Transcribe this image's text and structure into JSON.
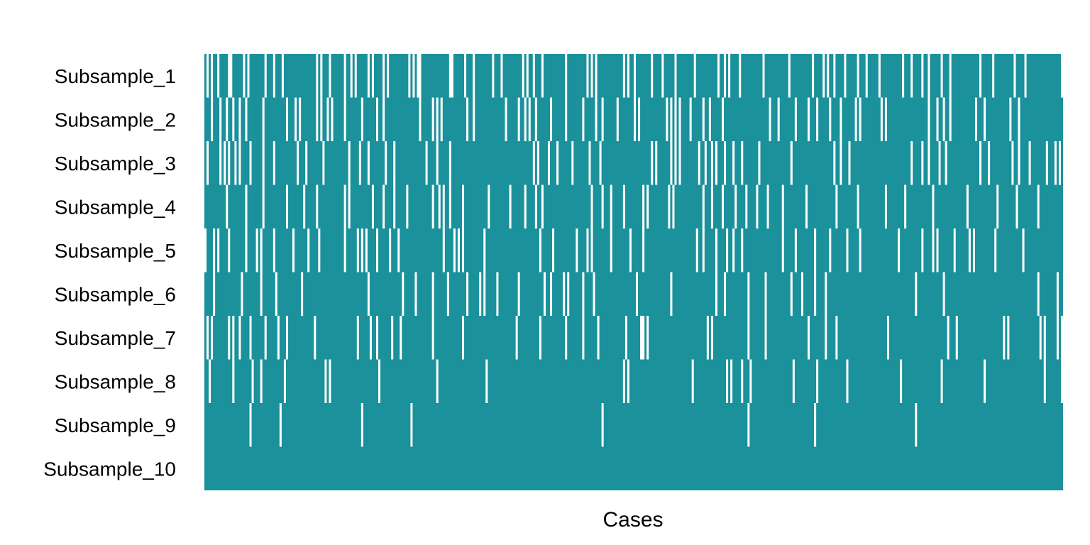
{
  "chart_data": {
    "type": "heatmap",
    "title": "",
    "xlabel": "Cases",
    "ylabel": "",
    "rows": [
      "Subsample_1",
      "Subsample_2",
      "Subsample_3",
      "Subsample_4",
      "Subsample_5",
      "Subsample_6",
      "Subsample_7",
      "Subsample_8",
      "Subsample_9",
      "Subsample_10"
    ],
    "n_cases": 400,
    "values_encoding": "each row is a binary membership string across cases: 1 = case included in subsample (filled cell), 0 = case not included (white cell)",
    "matrix": [
      "1010110111100111110101111111011101110111111111111111010111011111101101011111010111101011111111101010011111111111110011111011101111111101110111111111010110111011111111110111111111010101111111111110101101111111011110111110111111110111111111101101011110111111111101111111111101111111111011110101101111011111011101111101111111111011101111011011111011101111111111111011111011111111101111011111111111111110",
      "1110111011011011011011111110111111111101110101111111010110101111101111111011111101101111111111111111011111010101111111111101101111111111111101111101101011011111101111110111111101111101101111110111111101011111111111101010101111011111011011111011111111111111111111101110111111101111101110111110111101111110101111111110101111111111111111111011101101101111111111101110111111111110111011111111111111111111",
      "1011111010101101011110111110111101111111111011101111111011111111111011110111011111110111011111111111111011110111110111111111111111111111111111111111111110101111011101111110111111101111011111111111111111111111010111111010101111111101101101011101110111011111110111111111111110111111111111111111101101110111111111111111111111111111101111011011110110111111111111111011101111111111011011110111111101110101",
      "1111111111011111111011111110111111111101111111011111011111111111101011111111110111101111011111011111111111011010110111110111111111110111111111011111101111011011111111111111111111110111101110111110111111110101111111110101111111111111011101111011111011110111101111011111101111111111011111111111110111111111011111111111101111111101111111111110111111111111111011111111111110111111110111111111011111111111",
      "0111010111101111111011110101111101111111101111110111101111111111101111101010111101111101110111111111111111111110111101010111111111011111111111111111111111110111110111111111101111010111111110111111110111110111111111111111111111111011011111011110110111011111111111111111101111101111111101111110111111101111101111111111111111101111111111011110101111111011111101011111111101111111111110111111111111111111",
      "1111011111111111101111111101111110111111111110111111111111111111111111111111011111111111111101111101111111011111101111111101111101011111011111111101111111111101101111101011111101111011111111111111111110111111111111111011111111111111111111011101111111111011111110111111111110111101111101111011111111111111111111111111111111111111111011111111111101111111111111111111111111111111111111111111011111111011",
      "1010111111101011011110111111011111011101111111111110111111111111111111101111101101111110111011111111111111011111111111110111111111111111111111111011111111110111111111110111111101111110111111111111011111100101111111111111111111111111110101111111111111111011111110111111111111111111101111111011110111111111111111111111110111111111111111111111111111011101111111111111111111110101111111111111101011111010",
      "1101111111111011111111011101111111111011111111111111111101011111111111111111111110111111111111111111111111110111111111111111111111101111111111111111111111111111111111111111111111111111111111111110101111111111111111111111111111101111111111111110101111011101111111111111111111011111111110111111111111101111111111111111111111110111111111111111111011111111111111111110111111111111111111111111111011111110",
      "1111111111111111111110111111111111101111111111111111111111111111111111111011111111111111111111110111111111111111111111111111111111111111111111111111111111111111111111111111111111111111101111111111111111111111111111111111111111111111111111111111111111111011111111111111111111111111111101111111111111111111111111111111111111111111111011111111111111111111111111111111111111111111111111111111111111111111",
      "1111111111111111111111111111111111111111111111111111111111111111111111111111111111111111111111111111111111111111111111111111111111111111111111111111111111111111111111111111111111111111111111111111111111111111111111111111111111111111111111111111111111111111111111111111111111111111111111111111111111111111111111111111111111111111111111111111111111111111111111111111111111111111111111111111111111111111"
    ],
    "colors": {
      "included": "#1a919b",
      "excluded": "#ffffff"
    },
    "legend": "none",
    "grid": false
  }
}
